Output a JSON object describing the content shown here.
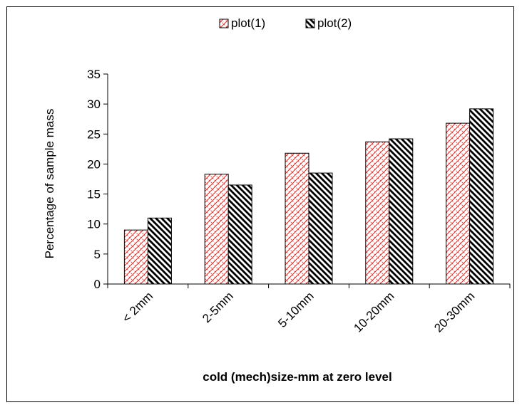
{
  "chart_data": {
    "type": "bar",
    "categories": [
      "< 2mm",
      "2-5mm",
      "5-10mm",
      "10-20mm",
      "20-30mm"
    ],
    "series": [
      {
        "name": "plot(1)",
        "values": [
          9.0,
          18.3,
          21.8,
          23.7,
          26.8
        ],
        "pattern": "red-crosshatch"
      },
      {
        "name": "plot(2)",
        "values": [
          11.0,
          16.5,
          18.5,
          24.2,
          29.2
        ],
        "pattern": "black-diagonal"
      }
    ],
    "xlabel": "cold (mech)size-mm at zero level",
    "ylabel": "Percentage of sample mass",
    "ylim": [
      0,
      35
    ],
    "yticks": [
      0,
      5,
      10,
      15,
      20,
      25,
      30,
      35
    ],
    "grid": false,
    "legend": "top-center",
    "colors": {
      "series1": "#e0302b",
      "series2": "#000000",
      "axis": "#000000"
    }
  }
}
